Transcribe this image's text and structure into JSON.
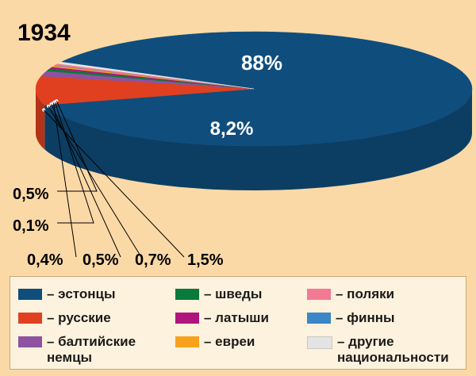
{
  "chart_data": {
    "type": "pie",
    "style": "3d",
    "title": "1934",
    "slices": [
      {
        "label": "эстонцы",
        "value": 88,
        "value_label": "88%",
        "color": "#0f4d7d"
      },
      {
        "label": "русские",
        "value": 8.2,
        "value_label": "8,2%",
        "color": "#e0401f"
      },
      {
        "label": "балтийские немцы",
        "value": 1.5,
        "value_label": "1,5%",
        "color": "#8e52a1"
      },
      {
        "label": "шведы",
        "value": 0.7,
        "value_label": "0,7%",
        "color": "#0a7a3a"
      },
      {
        "label": "латыши",
        "value": 0.5,
        "value_label": "0,5%",
        "color": "#b0157e"
      },
      {
        "label": "евреи",
        "value": 0.4,
        "value_label": "0,4%",
        "color": "#f6a21c"
      },
      {
        "label": "финны",
        "value": 0.1,
        "value_label": "0,1%",
        "color": "#3a86c6"
      },
      {
        "label": "поляки",
        "value": 0.5,
        "value_label": "0,5%",
        "color": "#f27a94"
      },
      {
        "label": "другие\nнациональности",
        "value": 0.5,
        "value_label": "",
        "color": "#e4e4e4"
      }
    ],
    "legend": {
      "placement": "bottom",
      "items": [
        {
          "label": "– эстонцы",
          "color": "#0f4d7d"
        },
        {
          "label": "– русские",
          "color": "#e0401f"
        },
        {
          "label": "– балтийские\nнемцы",
          "color": "#8e52a1"
        },
        {
          "label": "– шведы",
          "color": "#0a7a3a"
        },
        {
          "label": "– латыши",
          "color": "#b0157e"
        },
        {
          "label": "– евреи",
          "color": "#f6a21c"
        },
        {
          "label": "– поляки",
          "color": "#f27a94"
        },
        {
          "label": "– финны",
          "color": "#3a86c6"
        },
        {
          "label": "– другие\nнациональности",
          "color": "#e4e4e4"
        }
      ]
    }
  }
}
